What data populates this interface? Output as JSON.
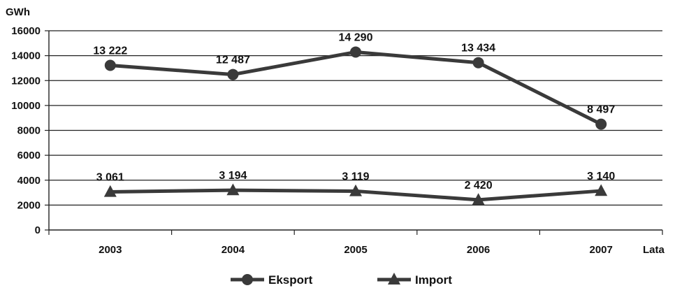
{
  "chart_data": {
    "type": "line",
    "ylabel": "GWh",
    "xlabel": "Lata",
    "categories": [
      "2003",
      "2004",
      "2005",
      "2006",
      "2007"
    ],
    "ylim": [
      0,
      16000
    ],
    "yticks": [
      "0",
      "2000",
      "4000",
      "6000",
      "8000",
      "10000",
      "12000",
      "14000",
      "16000"
    ],
    "grid": true,
    "legend_position": "bottom",
    "series": [
      {
        "name": "Eksport",
        "marker": "circle",
        "values": [
          13222,
          12487,
          14290,
          13434,
          8497
        ],
        "labels": [
          "13 222",
          "12 487",
          "14 290",
          "13 434",
          "8 497"
        ]
      },
      {
        "name": "Import",
        "marker": "triangle",
        "values": [
          3061,
          3194,
          3119,
          2420,
          3140
        ],
        "labels": [
          "3 061",
          "3 194",
          "3 119",
          "2 420",
          "3 140"
        ]
      }
    ],
    "line_color": "#3a3a3a"
  }
}
